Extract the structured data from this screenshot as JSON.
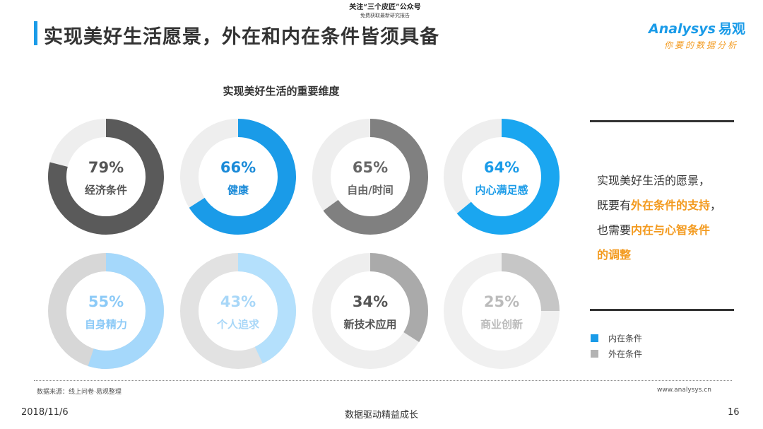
{
  "header": {
    "notice_line1": "关注“三个皮匠”公众号",
    "notice_line2": "免费获取最新研究报告",
    "title": "实现美好生活愿景，外在和内在条件皆须具备"
  },
  "logo": {
    "brand": "Analysys",
    "brand_cn": "易观",
    "slogan": "你要的数据分析"
  },
  "colors": {
    "internal": "#1a9be8",
    "internal_light": "#a5d8fb",
    "external_dark": "#5a5a5a",
    "external_mid": "#808080",
    "external_light": "#bfbfbf",
    "track_light": "#eeeeee",
    "track_mid": "#d7d7d7",
    "highlight": "#f39a1e"
  },
  "chart_data": {
    "type": "donut",
    "title": "实现美好生活的重要维度",
    "unit": "%",
    "legend": [
      {
        "name": "内在条件",
        "color": "#1a9be8"
      },
      {
        "name": "外在条件",
        "color": "#b3b3b3"
      }
    ],
    "items": [
      {
        "label": "经济条件",
        "value": 79,
        "value_label": "79%",
        "group": "外在条件",
        "arc": "#5a5a5a",
        "track": "#eeeeee",
        "text": "#555555"
      },
      {
        "label": "健康",
        "value": 66,
        "value_label": "66%",
        "group": "内在条件",
        "arc": "#1a9be8",
        "track": "#eeeeee",
        "text": "#1a8ad8"
      },
      {
        "label": "自由/时间",
        "value": 65,
        "value_label": "65%",
        "group": "外在条件",
        "arc": "#808080",
        "track": "#eeeeee",
        "text": "#666666"
      },
      {
        "label": "内心满足感",
        "value": 64,
        "value_label": "64%",
        "group": "内在条件",
        "arc": "#1aa6f0",
        "track": "#eeeeee",
        "text": "#1a9be8"
      },
      {
        "label": "自身精力",
        "value": 55,
        "value_label": "55%",
        "group": "内在条件",
        "arc": "#a5d8fb",
        "track": "#d7d7d7",
        "text": "#8ccaf7"
      },
      {
        "label": "个人追求",
        "value": 43,
        "value_label": "43%",
        "group": "内在条件",
        "arc": "#b4e0fc",
        "track": "#e2e2e2",
        "text": "#a8d7f8"
      },
      {
        "label": "新技术应用",
        "value": 34,
        "value_label": "34%",
        "group": "外在条件",
        "arc": "#aaaaaa",
        "track": "#eeeeee",
        "text": "#555555"
      },
      {
        "label": "商业创新",
        "value": 25,
        "value_label": "25%",
        "group": "外在条件",
        "arc": "#c6c6c6",
        "track": "#f0f0f0",
        "text": "#bbbbbb"
      }
    ]
  },
  "side_panel": {
    "line1": "实现美好生活的愿景，",
    "line2_pre": "既要有",
    "line2_hl": "外在条件的支持",
    "line2_post": "，",
    "line3_pre": "也需要",
    "line3_hl": "内在与心智条件",
    "line4_hl": "的调整"
  },
  "footer": {
    "source": "数据来源：线上问卷·易观整理",
    "website": "www.analysys.cn",
    "date": "2018/11/6",
    "center": "数据驱动精益成长",
    "page": "16"
  }
}
